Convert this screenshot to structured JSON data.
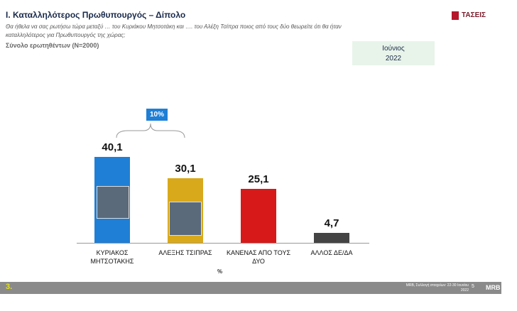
{
  "chart_data": {
    "type": "bar",
    "title": "Ι. Καταλληλότερος Πρωθυπουργός – Δίπολο",
    "subtitle": "Θα ήθελα να σας ρωτήσω τώρα μεταξύ … του Κυριάκου Μητσοτάκη και …. του  Αλέξη Τσίπρα ποιος από τους δύο θεωρείτε ότι θα ήταν καταλληλότερος για Πρωθυπουργός της χώρας;",
    "note": "Σύνολο ερωτηθέντων (N=2000)",
    "period": "Ιούνιος\n2022",
    "annotation": "10%",
    "x_label": "%",
    "categories": [
      "ΚΥΡΙΑΚΟΣ ΜΗΤΣΟΤΑΚΗΣ",
      "ΑΛΕΞΗΣ ΤΣΙΠΡΑΣ",
      "ΚΑΝΕΝΑΣ ΑΠΟ ΤΟΥΣ ΔΥΟ",
      "ΑΛΛΟΣ ΔΕ/ΔΑ"
    ],
    "values": [
      40.1,
      30.1,
      25.1,
      4.7
    ],
    "value_labels": [
      "40,1",
      "30,1",
      "25,1",
      "4,7"
    ],
    "colors": [
      "#1f7fd6",
      "#d9a91c",
      "#d81919",
      "#444444"
    ],
    "footer": {
      "slide": "3.",
      "source": "MRB, Συλλογή στοιχείων: 22-30 Ιουνίου 2022",
      "page": "5",
      "brand": "ΤΑΣΕΙΣ",
      "company": "MRB"
    }
  }
}
